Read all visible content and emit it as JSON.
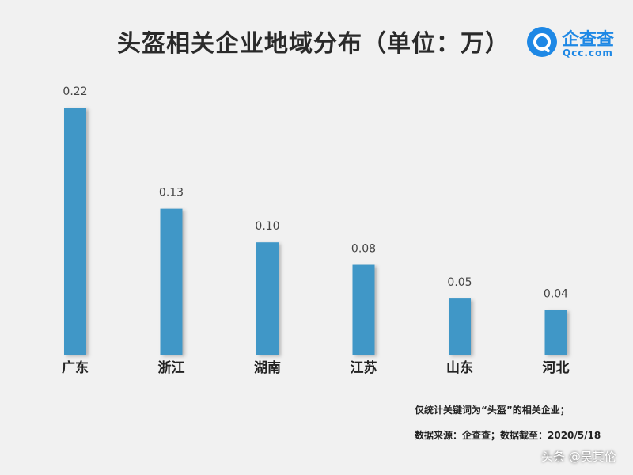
{
  "chart_data": {
    "type": "bar",
    "title": "头盔相关企业地域分布（单位：万）",
    "categories": [
      "广东",
      "浙江",
      "湖南",
      "江苏",
      "山东",
      "河北"
    ],
    "values": [
      0.22,
      0.13,
      0.1,
      0.08,
      0.05,
      0.04
    ],
    "value_labels": [
      "0.22",
      "0.13",
      "0.10",
      "0.08",
      "0.05",
      "0.04"
    ],
    "ylim": [
      0,
      0.22
    ],
    "xlabel": "",
    "ylabel": "",
    "bar_color": "#3f97c7"
  },
  "logo": {
    "name": "企查查",
    "domain": "Qcc.com"
  },
  "notes": {
    "line1": "仅统计关键词为“头盔”的相关企业；",
    "line2": "数据来源：企查查；数据截至：2020/5/18"
  },
  "watermark": "头条 @吴其伦"
}
